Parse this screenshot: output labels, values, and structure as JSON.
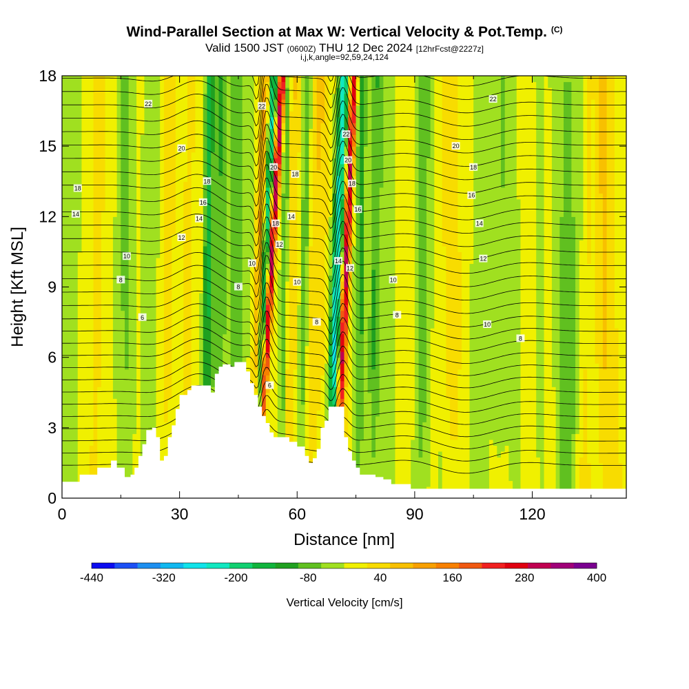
{
  "header": {
    "title": "Wind-Parallel Section at Max W: Vertical Velocity & Pot.Temp.",
    "copyright": "(C)",
    "valid_prefix": "Valid 1500 JST",
    "valid_utc": "(0600Z)",
    "valid_date": "THU 12 Dec 2024",
    "forecast": "[12hrFcst@2227z]",
    "indices": "i,j,k,angle=92,59,24,124"
  },
  "chart_data": {
    "type": "heatmap",
    "title": "Wind-Parallel Section at Max W: Vertical Velocity & Pot.Temp.",
    "xlabel": "Distance [nm]",
    "ylabel": "Height [Kft MSL]",
    "xlim": [
      0,
      144
    ],
    "ylim": [
      0,
      18
    ],
    "x_ticks": [
      0,
      30,
      60,
      90,
      120
    ],
    "y_ticks": [
      0,
      3,
      6,
      9,
      12,
      15,
      18
    ],
    "colorbar": {
      "label": "Vertical Velocity [cm/s]",
      "tick_labels": [
        "-440",
        "-320",
        "-200",
        "-80",
        "40",
        "160",
        "280",
        "400"
      ],
      "tick_values": [
        -440,
        -320,
        -200,
        -80,
        40,
        160,
        280,
        400
      ],
      "bins": [
        -440,
        -400,
        -360,
        -320,
        -280,
        -240,
        -200,
        -160,
        -120,
        -80,
        -40,
        0,
        40,
        80,
        120,
        160,
        200,
        240,
        280,
        320,
        360,
        400
      ],
      "colors": [
        "#0c0cf0",
        "#1c50f5",
        "#1d8ff0",
        "#10b8f0",
        "#10e3ea",
        "#10e8c0",
        "#10d070",
        "#10b43c",
        "#20a020",
        "#60c020",
        "#a0e020",
        "#f0f000",
        "#f8dc00",
        "#f8c000",
        "#f8a000",
        "#f88000",
        "#f05810",
        "#f02020",
        "#e00010",
        "#c00050",
        "#a00078",
        "#7a0090"
      ]
    },
    "terrain": [
      [
        0,
        0.7
      ],
      [
        4,
        0.7
      ],
      [
        4.5,
        1.0
      ],
      [
        8,
        1.0
      ],
      [
        9,
        1.3
      ],
      [
        12,
        1.3
      ],
      [
        12.5,
        1.6
      ],
      [
        13.5,
        1.6
      ],
      [
        14,
        1.3
      ],
      [
        15.5,
        1.3
      ],
      [
        16,
        0.9
      ],
      [
        17.5,
        1.0
      ],
      [
        18.5,
        1.3
      ],
      [
        19.5,
        1.8
      ],
      [
        20.5,
        2.3
      ],
      [
        21.5,
        2.9
      ],
      [
        23,
        3.0
      ],
      [
        24,
        2.6
      ],
      [
        25,
        1.6
      ],
      [
        26,
        1.8
      ],
      [
        27,
        2.6
      ],
      [
        28,
        3.1
      ],
      [
        29,
        3.8
      ],
      [
        30,
        4.4
      ],
      [
        32,
        4.6
      ],
      [
        33,
        4.8
      ],
      [
        37,
        4.8
      ],
      [
        38,
        4.5
      ],
      [
        39,
        5.3
      ],
      [
        40,
        5.6
      ],
      [
        41,
        5.7
      ],
      [
        43,
        5.6
      ],
      [
        44,
        5.8
      ],
      [
        46,
        5.8
      ],
      [
        47,
        5.4
      ],
      [
        48,
        4.9
      ],
      [
        49,
        4.4
      ],
      [
        50,
        3.9
      ],
      [
        51,
        3.5
      ],
      [
        52,
        3.2
      ],
      [
        53,
        2.8
      ],
      [
        54,
        2.6
      ],
      [
        58,
        2.4
      ],
      [
        60,
        2.2
      ],
      [
        62,
        1.8
      ],
      [
        63,
        1.5
      ],
      [
        64,
        1.7
      ],
      [
        65,
        2.1
      ],
      [
        66,
        3.0
      ],
      [
        67,
        3.3
      ],
      [
        68,
        3.9
      ],
      [
        71,
        3.9
      ],
      [
        72,
        2.6
      ],
      [
        73,
        2.0
      ],
      [
        74,
        1.6
      ],
      [
        75,
        1.3
      ],
      [
        76,
        1.0
      ],
      [
        80,
        0.9
      ],
      [
        82,
        0.8
      ],
      [
        84,
        0.6
      ],
      [
        88,
        0.6
      ],
      [
        89,
        0.4
      ],
      [
        144,
        0.4
      ]
    ],
    "updraft_bands": [
      {
        "x": 52,
        "slope": 0.35,
        "strength": 360,
        "width": 0.9
      },
      {
        "x": 71.5,
        "slope": 0.25,
        "strength": 320,
        "width": 0.9
      },
      {
        "x": 49.5,
        "slope": 0.2,
        "strength": 140,
        "width": 1.4
      },
      {
        "x": 57.5,
        "slope": 0.1,
        "strength": 80,
        "width": 2.0
      },
      {
        "x": 64,
        "slope": 0.15,
        "strength": 60,
        "width": 2.5
      },
      {
        "x": 27,
        "slope": 0.05,
        "strength": 55,
        "width": 2.5
      },
      {
        "x": 31.5,
        "slope": 0.05,
        "strength": 45,
        "width": 2.0
      },
      {
        "x": 99,
        "slope": 0.0,
        "strength": 45,
        "width": 4.0
      },
      {
        "x": 138,
        "slope": 0.0,
        "strength": 60,
        "width": 2.0
      }
    ],
    "downdraft_bands": [
      {
        "x": 51,
        "slope": 0.25,
        "strength": -220,
        "width": 1.0
      },
      {
        "x": 69.5,
        "slope": 0.2,
        "strength": -260,
        "width": 1.4
      },
      {
        "x": 37,
        "slope": 0.05,
        "strength": -160,
        "width": 1.2
      },
      {
        "x": 39.5,
        "slope": 0.05,
        "strength": -110,
        "width": 1.4
      },
      {
        "x": 56.5,
        "slope": 0.1,
        "strength": -130,
        "width": 1.0
      },
      {
        "x": 61.5,
        "slope": 0.1,
        "strength": -100,
        "width": 1.2
      },
      {
        "x": 76,
        "slope": 0.05,
        "strength": -100,
        "width": 1.2
      },
      {
        "x": 79.5,
        "slope": 0.05,
        "strength": -90,
        "width": 1.4
      },
      {
        "x": 16,
        "slope": 0.0,
        "strength": -60,
        "width": 2.0
      },
      {
        "x": 44.5,
        "slope": 0.0,
        "strength": -70,
        "width": 1.5
      },
      {
        "x": 92,
        "slope": 0.0,
        "strength": -60,
        "width": 1.5
      },
      {
        "x": 113,
        "slope": 0.0,
        "strength": -60,
        "width": 3.0
      },
      {
        "x": 131,
        "slope": 0.0,
        "strength": -55,
        "width": 2.0
      }
    ],
    "contour_labels": [
      {
        "text": "22",
        "x": 22,
        "y": 16.8
      },
      {
        "text": "20",
        "x": 30.5,
        "y": 14.9
      },
      {
        "text": "18",
        "x": 37,
        "y": 13.5
      },
      {
        "text": "16",
        "x": 36,
        "y": 12.6
      },
      {
        "text": "14",
        "x": 35,
        "y": 11.9
      },
      {
        "text": "12",
        "x": 30.5,
        "y": 11.1
      },
      {
        "text": "10",
        "x": 16.5,
        "y": 10.3
      },
      {
        "text": "8",
        "x": 15,
        "y": 9.3
      },
      {
        "text": "6",
        "x": 20.5,
        "y": 7.7
      },
      {
        "text": "18",
        "x": 4,
        "y": 13.2
      },
      {
        "text": "14",
        "x": 3.5,
        "y": 12.1
      },
      {
        "text": "22",
        "x": 51,
        "y": 16.7
      },
      {
        "text": "20",
        "x": 54,
        "y": 14.1
      },
      {
        "text": "18",
        "x": 59.5,
        "y": 13.8
      },
      {
        "text": "18",
        "x": 54.5,
        "y": 11.7
      },
      {
        "text": "14",
        "x": 58.5,
        "y": 12.0
      },
      {
        "text": "12",
        "x": 55.5,
        "y": 10.8
      },
      {
        "text": "10",
        "x": 48.5,
        "y": 10.0
      },
      {
        "text": "8",
        "x": 45,
        "y": 9.0
      },
      {
        "text": "10",
        "x": 60,
        "y": 9.2
      },
      {
        "text": "8",
        "x": 65,
        "y": 7.5
      },
      {
        "text": "6",
        "x": 53,
        "y": 4.8
      },
      {
        "text": "22",
        "x": 72.5,
        "y": 15.5
      },
      {
        "text": "20",
        "x": 73,
        "y": 14.4
      },
      {
        "text": "18",
        "x": 74,
        "y": 13.4
      },
      {
        "text": "16",
        "x": 75.5,
        "y": 12.3
      },
      {
        "text": "14",
        "x": 70.5,
        "y": 10.1
      },
      {
        "text": "12",
        "x": 73.5,
        "y": 9.8
      },
      {
        "text": "10",
        "x": 84.5,
        "y": 9.3
      },
      {
        "text": "8",
        "x": 85.5,
        "y": 7.8
      },
      {
        "text": "22",
        "x": 110,
        "y": 17.0
      },
      {
        "text": "20",
        "x": 100.5,
        "y": 15.0
      },
      {
        "text": "18",
        "x": 105,
        "y": 14.1
      },
      {
        "text": "16",
        "x": 104.5,
        "y": 12.9
      },
      {
        "text": "14",
        "x": 106.5,
        "y": 11.7
      },
      {
        "text": "12",
        "x": 107.5,
        "y": 10.2
      },
      {
        "text": "10",
        "x": 108.5,
        "y": 7.4
      },
      {
        "text": "8",
        "x": 117,
        "y": 6.8
      }
    ]
  }
}
